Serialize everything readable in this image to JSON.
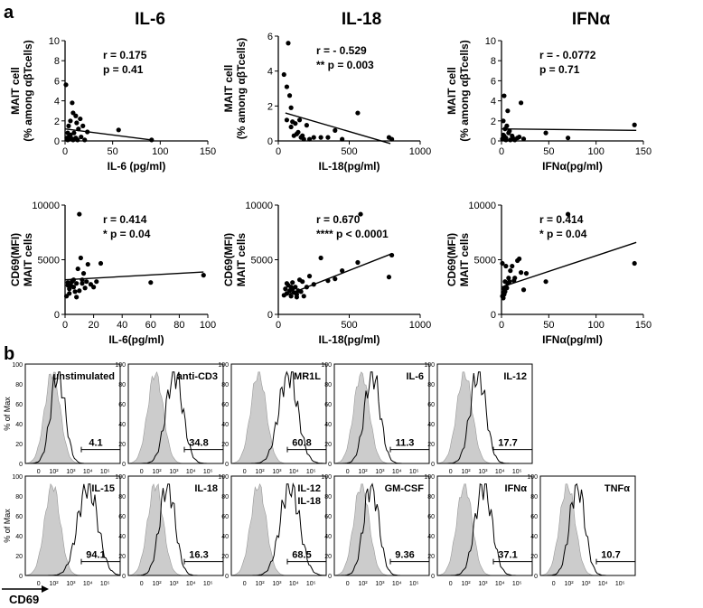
{
  "panel_labels": {
    "a": "a",
    "b": "b"
  },
  "column_headers": [
    "IL-6",
    "IL-18",
    "IFNα"
  ],
  "chart_data": [
    {
      "type": "scatter",
      "id": "a-mait-il6",
      "xlabel": "IL-6 (pg/ml)",
      "ylabel": [
        "MAIT cell",
        "(% among αβTcells)"
      ],
      "xlim": [
        0,
        160
      ],
      "ylim": [
        0,
        10
      ],
      "xticks": [
        "0",
        "50",
        "100",
        "150"
      ],
      "yticks": [
        "0",
        "2",
        "4",
        "6",
        "8",
        "10"
      ],
      "stats": [
        "r = 0.175",
        " p  = 0.41"
      ],
      "fit": {
        "x": [
          0,
          97
        ],
        "y": [
          1.2,
          0.1
        ]
      },
      "x": [
        1,
        2,
        3,
        4,
        5,
        6,
        7,
        8,
        9,
        10,
        12,
        13,
        14,
        15,
        17,
        18,
        20,
        22,
        25,
        12,
        8,
        3,
        6,
        9,
        60,
        97
      ],
      "y": [
        5.6,
        0.3,
        0.1,
        1.5,
        0.5,
        2.0,
        0.2,
        3.8,
        2.8,
        0.8,
        0.3,
        1.8,
        0.1,
        1.2,
        2.2,
        0.4,
        1.5,
        0.1,
        0.9,
        2.5,
        0.2,
        0.8,
        0.6,
        0.1,
        1.1,
        0.1
      ]
    },
    {
      "type": "scatter",
      "id": "a-mait-il18",
      "xlabel": "IL-18(pg/ml)",
      "ylabel": [
        "MAIT cell",
        "(% among αβTcells)"
      ],
      "xlim": [
        0,
        1000
      ],
      "ylim": [
        0,
        6
      ],
      "xticks": [
        "0",
        "500",
        "1000"
      ],
      "yticks": [
        "0",
        "2",
        "4",
        "6"
      ],
      "stats": [
        "r = - 0.529",
        "** p = 0.003"
      ],
      "fit": {
        "x": [
          50,
          790
        ],
        "y": [
          1.6,
          -0.15
        ]
      },
      "x": [
        70,
        40,
        60,
        80,
        90,
        100,
        120,
        130,
        150,
        160,
        180,
        200,
        250,
        300,
        350,
        400,
        450,
        560,
        780,
        800,
        110,
        140,
        220,
        90,
        60,
        170
      ],
      "y": [
        5.6,
        3.8,
        3.1,
        2.6,
        1.9,
        1.1,
        1.0,
        0.4,
        1.2,
        0.2,
        0.1,
        0.9,
        0.2,
        0.2,
        0.2,
        0.6,
        0.1,
        1.6,
        0.2,
        0.1,
        0.3,
        0.5,
        0.1,
        0.8,
        1.2,
        0.3
      ]
    },
    {
      "type": "scatter",
      "id": "a-mait-ifna",
      "xlabel": "IFNα(pg/ml)",
      "ylabel": [
        "MAIT cell",
        "(% among αβTcells)"
      ],
      "xlim": [
        0,
        160
      ],
      "ylim": [
        0,
        10
      ],
      "xticks": [
        "0",
        "50",
        "100",
        "150"
      ],
      "yticks": [
        "0",
        "2",
        "4",
        "6",
        "8",
        "10"
      ],
      "stats": [
        "r = - 0.0772",
        " p  = 0.71"
      ],
      "fit": {
        "x": [
          0,
          152
        ],
        "y": [
          1.2,
          1.05
        ]
      },
      "x": [
        1,
        2,
        3,
        4,
        5,
        6,
        7,
        8,
        10,
        12,
        14,
        15,
        18,
        20,
        22,
        25,
        50,
        75,
        150,
        3,
        5,
        9,
        2,
        4
      ],
      "y": [
        0.2,
        2.0,
        0.5,
        1.2,
        0.3,
        1.5,
        3.0,
        0.8,
        0.1,
        0.5,
        0.2,
        0.1,
        0.3,
        0.4,
        3.8,
        0.2,
        0.8,
        0.3,
        1.6,
        4.5,
        0.1,
        1.0,
        0.6,
        0.2
      ]
    },
    {
      "type": "scatter",
      "id": "a-cd69-il6",
      "xlabel": "IL-6(pg/ml)",
      "ylabel": [
        "CD69(MFI)",
        "MAIT cells"
      ],
      "xlim": [
        0,
        100
      ],
      "ylim": [
        0,
        12000
      ],
      "xticks": [
        "0",
        "20",
        "40",
        "60",
        "80",
        "100"
      ],
      "yticks": [
        "0",
        "5000",
        "10000"
      ],
      "stats": [
        "r = 0.414",
        "* p  = 0.04"
      ],
      "fit": {
        "x": [
          0,
          97
        ],
        "y": [
          3800,
          4650
        ]
      },
      "x": [
        1,
        2,
        3,
        4,
        5,
        6,
        7,
        8,
        9,
        10,
        11,
        12,
        13,
        14,
        15,
        16,
        18,
        20,
        22,
        25,
        3,
        5,
        8,
        12,
        60,
        97,
        10,
        2,
        6
      ],
      "y": [
        2000,
        3500,
        2800,
        3200,
        3600,
        3000,
        2500,
        3400,
        5000,
        11000,
        6200,
        3800,
        4500,
        2900,
        3600,
        5500,
        3300,
        3000,
        3600,
        5600,
        2300,
        3700,
        1900,
        3400,
        3500,
        4300,
        2600,
        3200,
        3800
      ]
    },
    {
      "type": "scatter",
      "id": "a-cd69-il18",
      "xlabel": "IL-18(pg/ml)",
      "ylabel": [
        "CD69(MFI)",
        "MAIT cells"
      ],
      "xlim": [
        0,
        1000
      ],
      "ylim": [
        0,
        12000
      ],
      "xticks": [
        "0",
        "500",
        "1000"
      ],
      "yticks": [
        "0",
        "5000",
        "10000"
      ],
      "stats": [
        "r = 0.670",
        "**** p  < 0.0001"
      ],
      "fit": {
        "x": [
          40,
          790
        ],
        "y": [
          2000,
          6600
        ]
      },
      "x": [
        40,
        50,
        60,
        70,
        80,
        90,
        100,
        110,
        120,
        130,
        140,
        150,
        160,
        170,
        180,
        200,
        220,
        250,
        300,
        350,
        400,
        450,
        560,
        580,
        780,
        800,
        100,
        130,
        60,
        90
      ],
      "y": [
        2100,
        2800,
        2300,
        3200,
        2600,
        2000,
        3500,
        2400,
        3000,
        1900,
        2600,
        3800,
        2500,
        3600,
        2000,
        3000,
        4200,
        3300,
        6200,
        3700,
        3900,
        4800,
        5700,
        11000,
        4100,
        6500,
        2800,
        2200,
        3400,
        3000
      ]
    },
    {
      "type": "scatter",
      "id": "a-cd69-ifna",
      "xlabel": "IFNα(pg/ml)",
      "ylabel": [
        "CD69(MFI)",
        "MAIT cells"
      ],
      "xlim": [
        0,
        160
      ],
      "ylim": [
        0,
        12000
      ],
      "xticks": [
        "0",
        "50",
        "100",
        "150"
      ],
      "yticks": [
        "0",
        "5000",
        "10000"
      ],
      "stats": [
        "r = 0.414",
        "* p  = 0.04"
      ],
      "fit": {
        "x": [
          0,
          152
        ],
        "y": [
          3000,
          7900
        ]
      },
      "x": [
        1,
        2,
        3,
        4,
        5,
        6,
        7,
        8,
        10,
        12,
        14,
        15,
        18,
        20,
        22,
        25,
        50,
        75,
        150,
        3,
        5,
        9,
        2,
        4,
        28,
        1
      ],
      "y": [
        2000,
        2400,
        2800,
        3600,
        5300,
        2900,
        3400,
        4000,
        4800,
        5300,
        3700,
        4000,
        5900,
        6100,
        4600,
        2700,
        3600,
        11000,
        5600,
        2200,
        3000,
        3600,
        1800,
        2500,
        4500,
        5600
      ]
    }
  ],
  "histograms": [
    {
      "label": [
        "unstimulated"
      ],
      "pct": "4.1",
      "shift": 0
    },
    {
      "label": [
        "anti-CD3"
      ],
      "pct": "34.8",
      "shift": 25
    },
    {
      "label": [
        "MR1L"
      ],
      "pct": "60.8",
      "shift": 45
    },
    {
      "label": [
        "IL-6"
      ],
      "pct": "11.3",
      "shift": 10
    },
    {
      "label": [
        "IL-12"
      ],
      "pct": "17.7",
      "shift": 15
    },
    {
      "label": [
        "IL-15"
      ],
      "pct": "94.1",
      "shift": 55
    },
    {
      "label": [
        "IL-18"
      ],
      "pct": "16.3",
      "shift": 12
    },
    {
      "label": [
        "IL-12",
        "IL-18"
      ],
      "pct": "68.5",
      "shift": 48
    },
    {
      "label": [
        "GM-CSF"
      ],
      "pct": "9.36",
      "shift": 8
    },
    {
      "label": [
        "IFNα"
      ],
      "pct": "37.1",
      "shift": 25
    },
    {
      "label": [
        "TNFα"
      ],
      "pct": "10.7",
      "shift": 8
    }
  ],
  "histogram_axes": {
    "ylabel": "% of Max",
    "yticks": [
      "0",
      "20",
      "40",
      "60",
      "80",
      "100"
    ],
    "xticks": [
      "0",
      "10²",
      "10³",
      "10⁴",
      "10⁵"
    ],
    "xaxis_title": "CD69"
  }
}
